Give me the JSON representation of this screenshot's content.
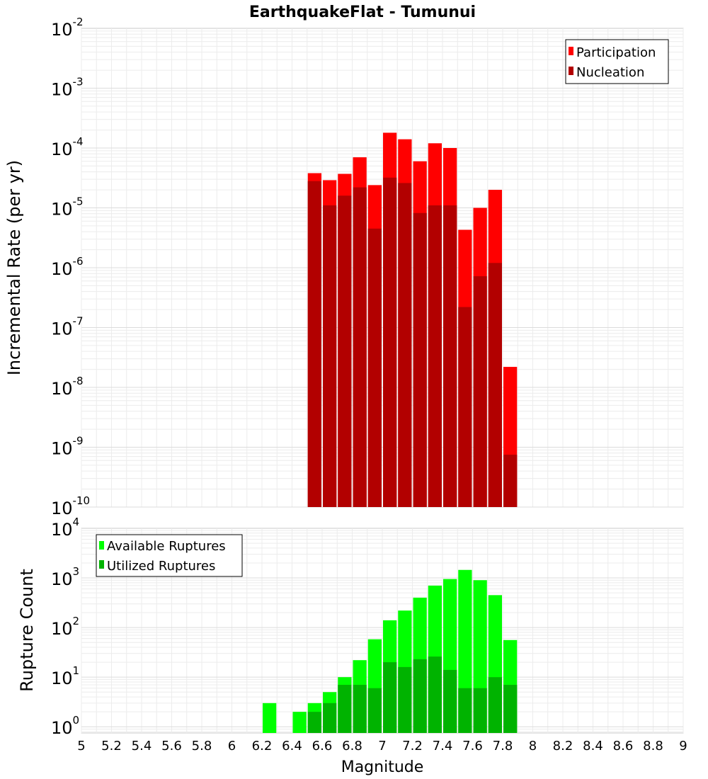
{
  "chart_data": [
    {
      "type": "bar",
      "title": "EarthquakeFlat - Tumunui",
      "ylabel": "Incremental Rate (per yr)",
      "xlabel": "",
      "y_scale": "log",
      "ylim": [
        1e-10,
        0.01
      ],
      "xlim": [
        5,
        9
      ],
      "grid": true,
      "legend_position": "top-right",
      "ytick_labels": [
        {
          "base": "10",
          "exp": "-10",
          "value": 1e-10
        },
        {
          "base": "10",
          "exp": "-9",
          "value": 1e-09
        },
        {
          "base": "10",
          "exp": "-8",
          "value": 1e-08
        },
        {
          "base": "10",
          "exp": "-7",
          "value": 1e-07
        },
        {
          "base": "10",
          "exp": "-6",
          "value": 1e-06
        },
        {
          "base": "10",
          "exp": "-5",
          "value": 1e-05
        },
        {
          "base": "10",
          "exp": "-4",
          "value": 0.0001
        },
        {
          "base": "10",
          "exp": "-3",
          "value": 0.001
        },
        {
          "base": "10",
          "exp": "-2",
          "value": 0.01
        }
      ],
      "x": [
        6.55,
        6.65,
        6.75,
        6.85,
        6.95,
        7.05,
        7.15,
        7.25,
        7.35,
        7.45,
        7.55,
        7.65,
        7.75,
        7.85
      ],
      "series": [
        {
          "name": "Participation",
          "color": "#ff0000",
          "values": [
            3.8e-05,
            2.9e-05,
            3.7e-05,
            7e-05,
            2.4e-05,
            0.00018,
            0.00014,
            6e-05,
            0.00012,
            0.0001,
            4.3e-06,
            1e-05,
            2e-05,
            2.2e-08
          ]
        },
        {
          "name": "Nucleation",
          "color": "#b20000",
          "values": [
            2.8e-05,
            1.1e-05,
            1.6e-05,
            2.2e-05,
            4.5e-06,
            3.2e-05,
            2.6e-05,
            8.2e-06,
            1.1e-05,
            1.1e-05,
            2.2e-07,
            7.2e-07,
            1.2e-06,
            7.5e-10
          ]
        }
      ]
    },
    {
      "type": "bar",
      "title": "",
      "ylabel": "Rupture Count",
      "xlabel": "Magnitude",
      "y_scale": "log",
      "ylim": [
        0.75,
        10000
      ],
      "xlim": [
        5,
        9
      ],
      "grid": true,
      "legend_position": "top-left",
      "ytick_labels": [
        {
          "base": "10",
          "exp": "0",
          "value": 1
        },
        {
          "base": "10",
          "exp": "1",
          "value": 10
        },
        {
          "base": "10",
          "exp": "2",
          "value": 100
        },
        {
          "base": "10",
          "exp": "3",
          "value": 1000
        },
        {
          "base": "10",
          "exp": "4",
          "value": 10000
        }
      ],
      "xtick_labels": [
        "5",
        "5.2",
        "5.4",
        "5.6",
        "5.8",
        "6",
        "6.2",
        "6.4",
        "6.6",
        "6.8",
        "7",
        "7.2",
        "7.4",
        "7.6",
        "7.8",
        "8",
        "8.2",
        "8.4",
        "8.6",
        "8.8",
        "9"
      ],
      "x": [
        6.25,
        6.45,
        6.55,
        6.65,
        6.75,
        6.85,
        6.95,
        7.05,
        7.15,
        7.25,
        7.35,
        7.45,
        7.55,
        7.65,
        7.75,
        7.85
      ],
      "series": [
        {
          "name": "Available Ruptures",
          "color": "#00ff00",
          "values": [
            3,
            2,
            3,
            5,
            10,
            22,
            58,
            140,
            220,
            400,
            700,
            950,
            1450,
            900,
            450,
            56
          ]
        },
        {
          "name": "Utilized Ruptures",
          "color": "#00b300",
          "values": [
            0,
            0,
            2,
            3,
            7,
            7,
            6,
            20,
            16,
            23,
            26,
            14,
            6,
            6,
            10,
            7
          ]
        }
      ]
    }
  ]
}
